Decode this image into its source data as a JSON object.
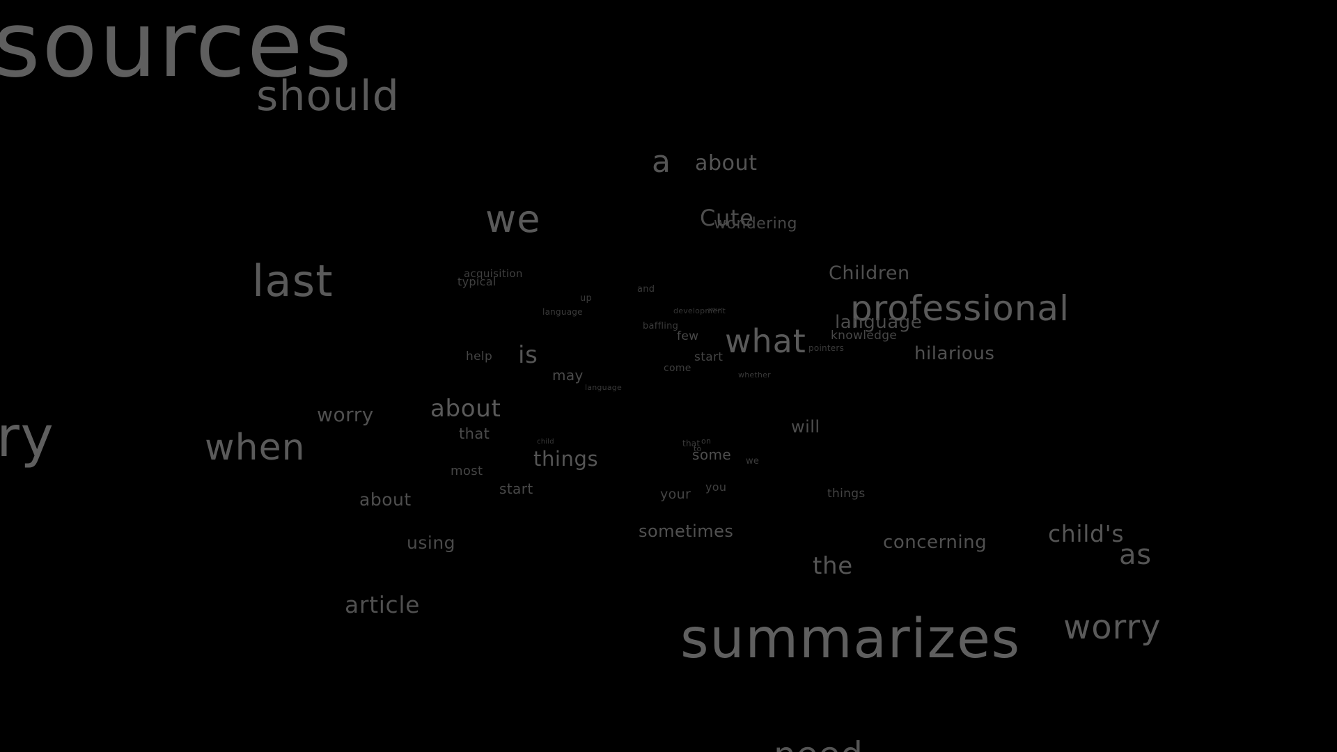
{
  "words": [
    {
      "text": "sources",
      "tone": "#5f5f5f"
    },
    {
      "text": "should",
      "tone": "#5a5a5a"
    },
    {
      "text": "a",
      "tone": "#555555"
    },
    {
      "text": "about",
      "tone": "#555555"
    },
    {
      "text": "we",
      "tone": "#5a5a5a"
    },
    {
      "text": "Cute",
      "tone": "#4e4e4e"
    },
    {
      "text": "wondering",
      "tone": "#474747"
    },
    {
      "text": "last",
      "tone": "#5a5a5a"
    },
    {
      "text": "acquisition",
      "tone": "#3f3f3f"
    },
    {
      "text": "typical",
      "tone": "#3f3f3f"
    },
    {
      "text": "Children",
      "tone": "#505050"
    },
    {
      "text": "up",
      "tone": "#3a3a3a"
    },
    {
      "text": "and",
      "tone": "#3a3a3a"
    },
    {
      "text": "language",
      "tone": "#3a3a3a"
    },
    {
      "text": "development",
      "tone": "#363636"
    },
    {
      "text": "your",
      "tone": "#333333"
    },
    {
      "text": "professional",
      "tone": "#5a5a5a"
    },
    {
      "text": "language",
      "tone": "#4c4c4c"
    },
    {
      "text": "baffling",
      "tone": "#3a3a3a"
    },
    {
      "text": "few",
      "tone": "#484848"
    },
    {
      "text": "what",
      "tone": "#5a5a5a"
    },
    {
      "text": "knowledge",
      "tone": "#474747"
    },
    {
      "text": "pointers",
      "tone": "#3a3a3a"
    },
    {
      "text": "hilarious",
      "tone": "#505050"
    },
    {
      "text": "help",
      "tone": "#454545"
    },
    {
      "text": "is",
      "tone": "#555555"
    },
    {
      "text": "start",
      "tone": "#444444"
    },
    {
      "text": "may",
      "tone": "#4a4a4a"
    },
    {
      "text": "come",
      "tone": "#3e3e3e"
    },
    {
      "text": "whether",
      "tone": "#393939"
    },
    {
      "text": "language",
      "tone": "#393939"
    },
    {
      "text": "worry",
      "tone": "#505050"
    },
    {
      "text": "about",
      "tone": "#5a5a5a"
    },
    {
      "text": "will",
      "tone": "#4e4e4e"
    },
    {
      "text": "ry",
      "tone": "#5f5f5f"
    },
    {
      "text": "when",
      "tone": "#5a5a5a"
    },
    {
      "text": "that",
      "tone": "#4a4a4a"
    },
    {
      "text": "child",
      "tone": "#363636"
    },
    {
      "text": "that",
      "tone": "#3c3c3c"
    },
    {
      "text": "on",
      "tone": "#3c3c3c"
    },
    {
      "text": "to",
      "tone": "#3c3c3c"
    },
    {
      "text": "things",
      "tone": "#555555"
    },
    {
      "text": "some",
      "tone": "#4e4e4e"
    },
    {
      "text": "we",
      "tone": "#3c3c3c"
    },
    {
      "text": "most",
      "tone": "#454545"
    },
    {
      "text": "start",
      "tone": "#484848"
    },
    {
      "text": "you",
      "tone": "#404040"
    },
    {
      "text": "your",
      "tone": "#444444"
    },
    {
      "text": "things",
      "tone": "#444444"
    },
    {
      "text": "about",
      "tone": "#4e4e4e"
    },
    {
      "text": "using",
      "tone": "#4a4a4a"
    },
    {
      "text": "sometimes",
      "tone": "#505050"
    },
    {
      "text": "concerning",
      "tone": "#505050"
    },
    {
      "text": "child's",
      "tone": "#555555"
    },
    {
      "text": "as",
      "tone": "#555555"
    },
    {
      "text": "the",
      "tone": "#555555"
    },
    {
      "text": "article",
      "tone": "#505050"
    },
    {
      "text": "summarizes",
      "tone": "#5f5f5f"
    },
    {
      "text": "worry",
      "tone": "#5a5a5a"
    },
    {
      "text": "need",
      "tone": "#555555"
    }
  ]
}
